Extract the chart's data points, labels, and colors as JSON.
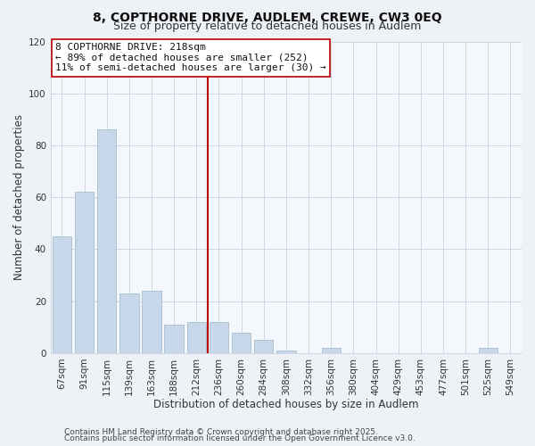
{
  "title": "8, COPTHORNE DRIVE, AUDLEM, CREWE, CW3 0EQ",
  "subtitle": "Size of property relative to detached houses in Audlem",
  "xlabel": "Distribution of detached houses by size in Audlem",
  "ylabel": "Number of detached properties",
  "bar_labels": [
    "67sqm",
    "91sqm",
    "115sqm",
    "139sqm",
    "163sqm",
    "188sqm",
    "212sqm",
    "236sqm",
    "260sqm",
    "284sqm",
    "308sqm",
    "332sqm",
    "356sqm",
    "380sqm",
    "404sqm",
    "429sqm",
    "453sqm",
    "477sqm",
    "501sqm",
    "525sqm",
    "549sqm"
  ],
  "bar_values": [
    45,
    62,
    86,
    23,
    24,
    11,
    12,
    12,
    8,
    5,
    1,
    0,
    2,
    0,
    0,
    0,
    0,
    0,
    0,
    2,
    0
  ],
  "bar_color": "#c8d8eb",
  "bar_edge_color": "#a8bece",
  "vline_x_index": 6,
  "vline_color": "#bb0000",
  "annotation_line1": "8 COPTHORNE DRIVE: 218sqm",
  "annotation_line2": "← 89% of detached houses are smaller (252)",
  "annotation_line3": "11% of semi-detached houses are larger (30) →",
  "ylim": [
    0,
    120
  ],
  "yticks": [
    0,
    20,
    40,
    60,
    80,
    100,
    120
  ],
  "footer1": "Contains HM Land Registry data © Crown copyright and database right 2025.",
  "footer2": "Contains public sector information licensed under the Open Government Licence v3.0.",
  "bg_color": "#eef2f6",
  "plot_bg_color": "#f4f8fc",
  "grid_color": "#ccd8e4",
  "title_fontsize": 10,
  "subtitle_fontsize": 9,
  "label_fontsize": 8.5,
  "tick_fontsize": 7.5,
  "annotation_fontsize": 8,
  "footer_fontsize": 6.5
}
